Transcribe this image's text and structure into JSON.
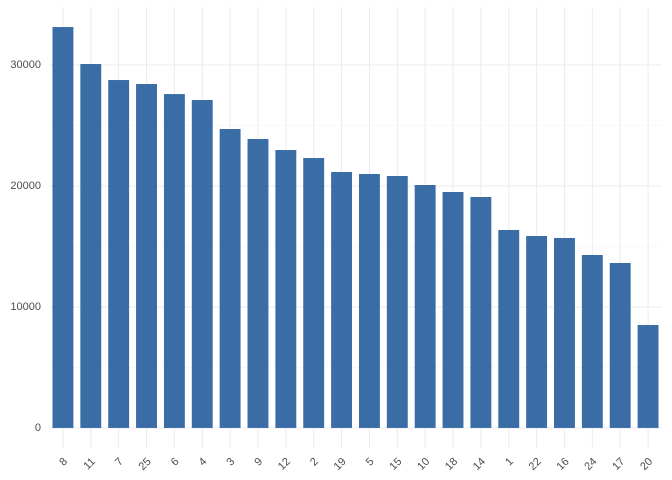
{
  "chart_data": {
    "type": "bar",
    "categories": [
      "8",
      "11",
      "7",
      "25",
      "6",
      "4",
      "3",
      "9",
      "12",
      "2",
      "19",
      "5",
      "15",
      "10",
      "18",
      "14",
      "1",
      "22",
      "16",
      "24",
      "17",
      "20"
    ],
    "values": [
      33140,
      30083,
      28760,
      28430,
      27600,
      27107,
      24711,
      23884,
      22975,
      22314,
      21157,
      20992,
      20826,
      20083,
      19504,
      19091,
      16364,
      15868,
      15702,
      14298,
      13636,
      8512
    ],
    "color": "#3a6ca6",
    "ylim": [
      -1657,
      34797
    ],
    "yticks": [
      0,
      10000,
      20000,
      30000
    ],
    "grid": true
  }
}
